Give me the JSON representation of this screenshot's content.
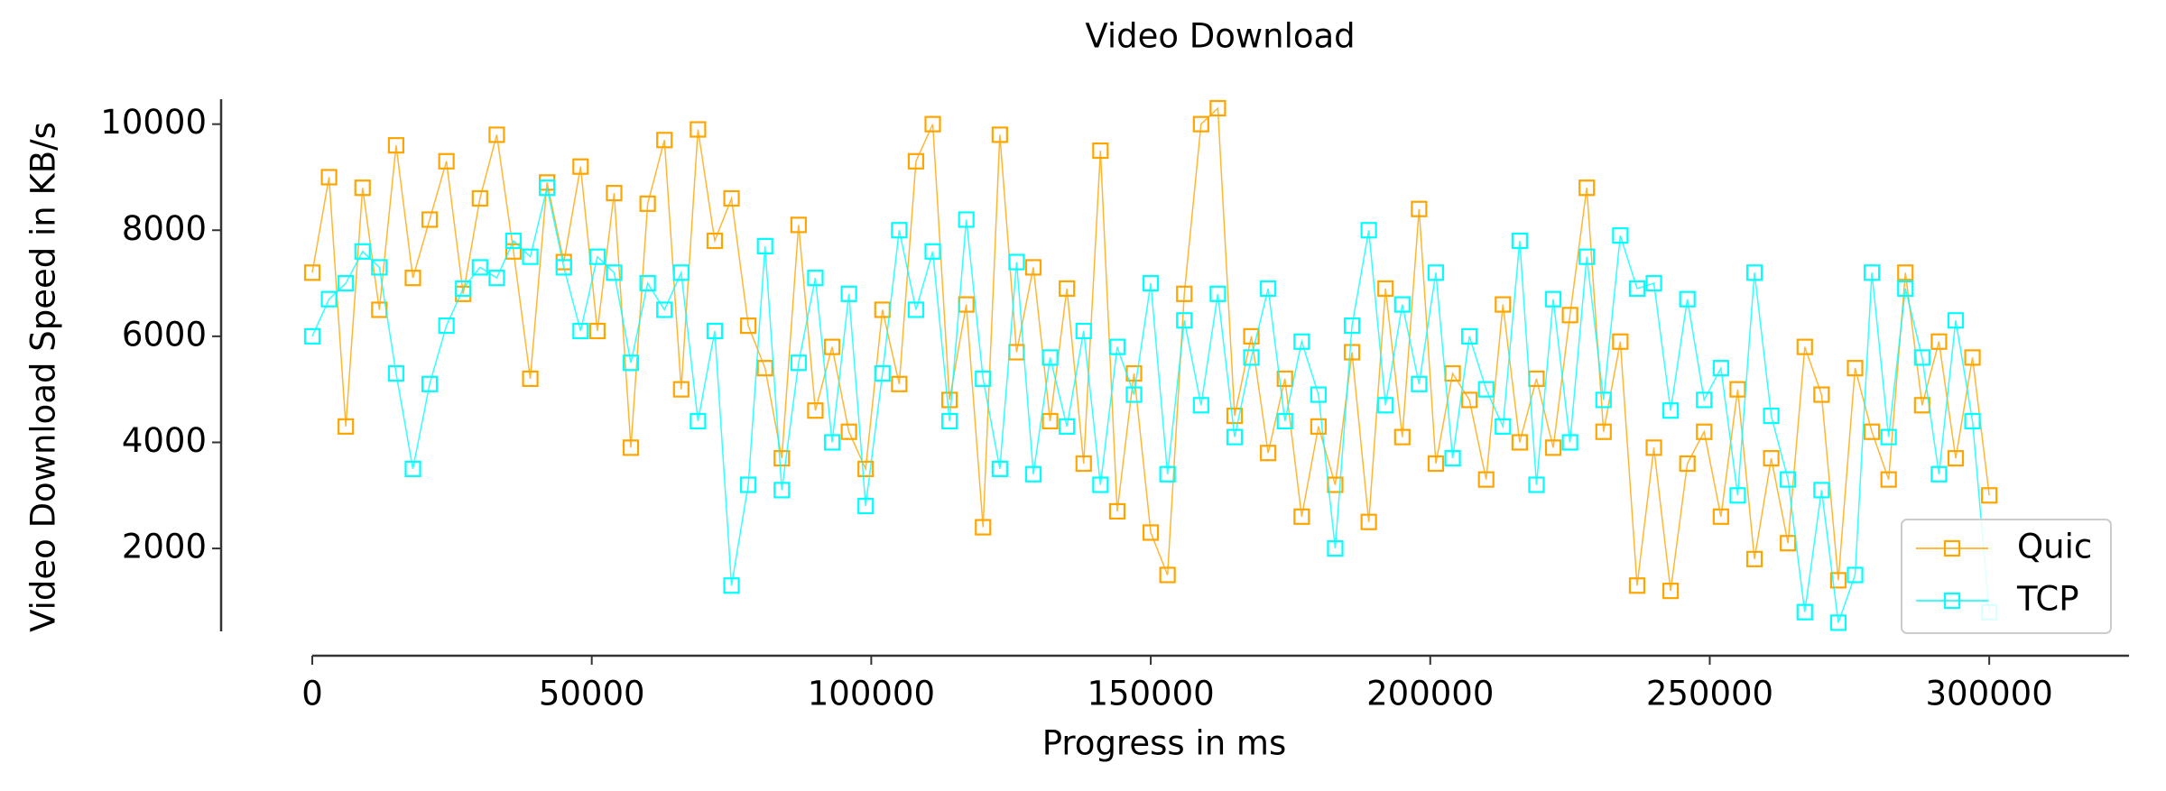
{
  "chart_data": {
    "type": "line",
    "title": "Video Download",
    "xlabel": "Progress in ms",
    "ylabel": "Video Download Speed in KB/s",
    "x": [
      0,
      3000,
      6000,
      9000,
      12000,
      15000,
      18000,
      21000,
      24000,
      27000,
      30000,
      33000,
      36000,
      39000,
      42000,
      45000,
      48000,
      51000,
      54000,
      57000,
      60000,
      63000,
      66000,
      69000,
      72000,
      75000,
      78000,
      81000,
      84000,
      87000,
      90000,
      93000,
      96000,
      99000,
      102000,
      105000,
      108000,
      111000,
      114000,
      117000,
      120000,
      123000,
      126000,
      129000,
      132000,
      135000,
      138000,
      141000,
      144000,
      147000,
      150000,
      153000,
      156000,
      159000,
      162000,
      165000,
      168000,
      171000,
      174000,
      177000,
      180000,
      183000,
      186000,
      189000,
      192000,
      195000,
      198000,
      201000,
      204000,
      207000,
      210000,
      213000,
      216000,
      219000,
      222000,
      225000,
      228000,
      231000,
      234000,
      237000,
      240000,
      243000,
      246000,
      249000,
      252000,
      255000,
      258000,
      261000,
      264000,
      267000,
      270000,
      273000,
      276000,
      279000,
      282000,
      285000,
      288000,
      291000,
      294000,
      297000,
      300000
    ],
    "series": [
      {
        "name": "Quic",
        "color": "#ffa500",
        "values": [
          7200,
          9000,
          4300,
          8800,
          6500,
          9600,
          7100,
          8200,
          9300,
          6800,
          8600,
          9800,
          7600,
          5200,
          8900,
          7400,
          9200,
          6100,
          8700,
          3900,
          8500,
          9700,
          5000,
          9900,
          7800,
          8600,
          6200,
          5400,
          3700,
          8100,
          4600,
          5800,
          4200,
          3500,
          6500,
          5100,
          9300,
          10000,
          4800,
          6600,
          2400,
          9800,
          5700,
          7300,
          4400,
          6900,
          3600,
          9500,
          2700,
          5300,
          2300,
          1500,
          6800,
          10000,
          10300,
          4500,
          6000,
          3800,
          5200,
          2600,
          4300,
          3200,
          5700,
          2500,
          6900,
          4100,
          8400,
          3600,
          5300,
          4800,
          3300,
          6600,
          4000,
          5200,
          3900,
          6400,
          8800,
          4200,
          5900,
          1300,
          3900,
          1200,
          3600,
          4200,
          2600,
          5000,
          1800,
          3700,
          2100,
          5800,
          4900,
          1400,
          5400,
          4200,
          3300,
          7200,
          4700,
          5900,
          3700,
          5600,
          3000
        ]
      },
      {
        "name": "TCP",
        "color": "#00ffff",
        "values": [
          6000,
          6700,
          7000,
          7600,
          7300,
          5300,
          3500,
          5100,
          6200,
          6900,
          7300,
          7100,
          7800,
          7500,
          8800,
          7300,
          6100,
          7500,
          7200,
          5500,
          7000,
          6500,
          7200,
          4400,
          6100,
          1300,
          3200,
          7700,
          3100,
          5500,
          7100,
          4000,
          6800,
          2800,
          5300,
          8000,
          6500,
          7600,
          4400,
          8200,
          5200,
          3500,
          7400,
          3400,
          5600,
          4300,
          6100,
          3200,
          5800,
          4900,
          7000,
          3400,
          6300,
          4700,
          6800,
          4100,
          5600,
          6900,
          4400,
          5900,
          4900,
          2000,
          6200,
          8000,
          4700,
          6600,
          5100,
          7200,
          3700,
          6000,
          5000,
          4300,
          7800,
          3200,
          6700,
          4000,
          7500,
          4800,
          7900,
          6900,
          7000,
          4600,
          6700,
          4800,
          5400,
          3000,
          7200,
          4500,
          3300,
          800,
          3100,
          600,
          1500,
          7200,
          4100,
          6900,
          5600,
          3400,
          6300,
          4400,
          800
        ]
      }
    ],
    "xlim": [
      0,
      325000
    ],
    "ylim": [
      437,
      10470
    ],
    "xticks": [
      0,
      50000,
      100000,
      150000,
      200000,
      250000,
      300000
    ],
    "yticks": [
      2000,
      4000,
      6000,
      8000,
      10000
    ],
    "legend": "lower right"
  }
}
